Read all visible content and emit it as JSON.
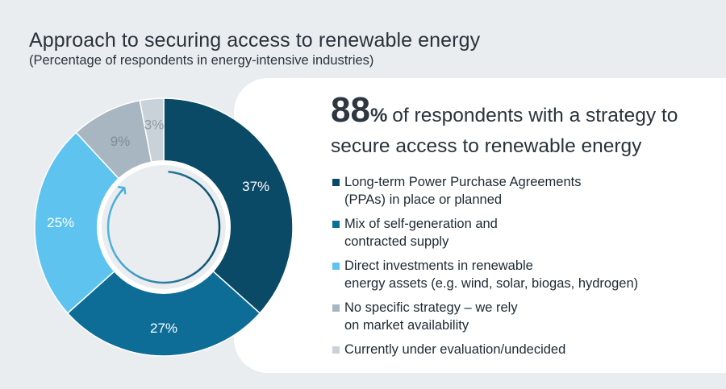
{
  "title": "Approach to securing access to renewable energy",
  "subtitle": "(Percentage of respondents in energy-intensive industries)",
  "headline": {
    "value": "88",
    "unit": "%",
    "text": "of respondents with a strategy to secure access to renewable energy"
  },
  "chart_data": {
    "type": "pie",
    "variant": "donut",
    "categories": [
      "Long-term Power Purchase Agreements (PPAs) in place or planned",
      "Mix of self-generation and contracted supply",
      "Direct investments in renewable energy assets (e.g. wind, solar, biogas, hydrogen)",
      "No specific strategy – we rely on market availability",
      "Currently under evaluation/undecided"
    ],
    "values": [
      37,
      27,
      25,
      9,
      3
    ],
    "labels": [
      "37%",
      "27%",
      "25%",
      "9%",
      "3%"
    ],
    "colors": [
      "#0a4a66",
      "#0d6d96",
      "#5ec4ef",
      "#a7b6c0",
      "#c9d2d8"
    ],
    "label_colors": [
      "#ffffff",
      "#ffffff",
      "#ffffff",
      "#7d8d98",
      "#8d9ba5"
    ],
    "legend_placement": "right"
  },
  "legend": [
    {
      "line1": "Long-term Power Purchase Agreements",
      "line2": "(PPAs) in place or planned"
    },
    {
      "line1": "Mix of self-generation and",
      "line2": "contracted supply"
    },
    {
      "line1": "Direct investments in renewable",
      "line2": "energy assets (e.g. wind, solar, biogas, hydrogen)"
    },
    {
      "line1": "No specific strategy – we rely",
      "line2": "on market availability"
    },
    {
      "line1": "Currently under evaluation/undecided",
      "line2": ""
    }
  ]
}
